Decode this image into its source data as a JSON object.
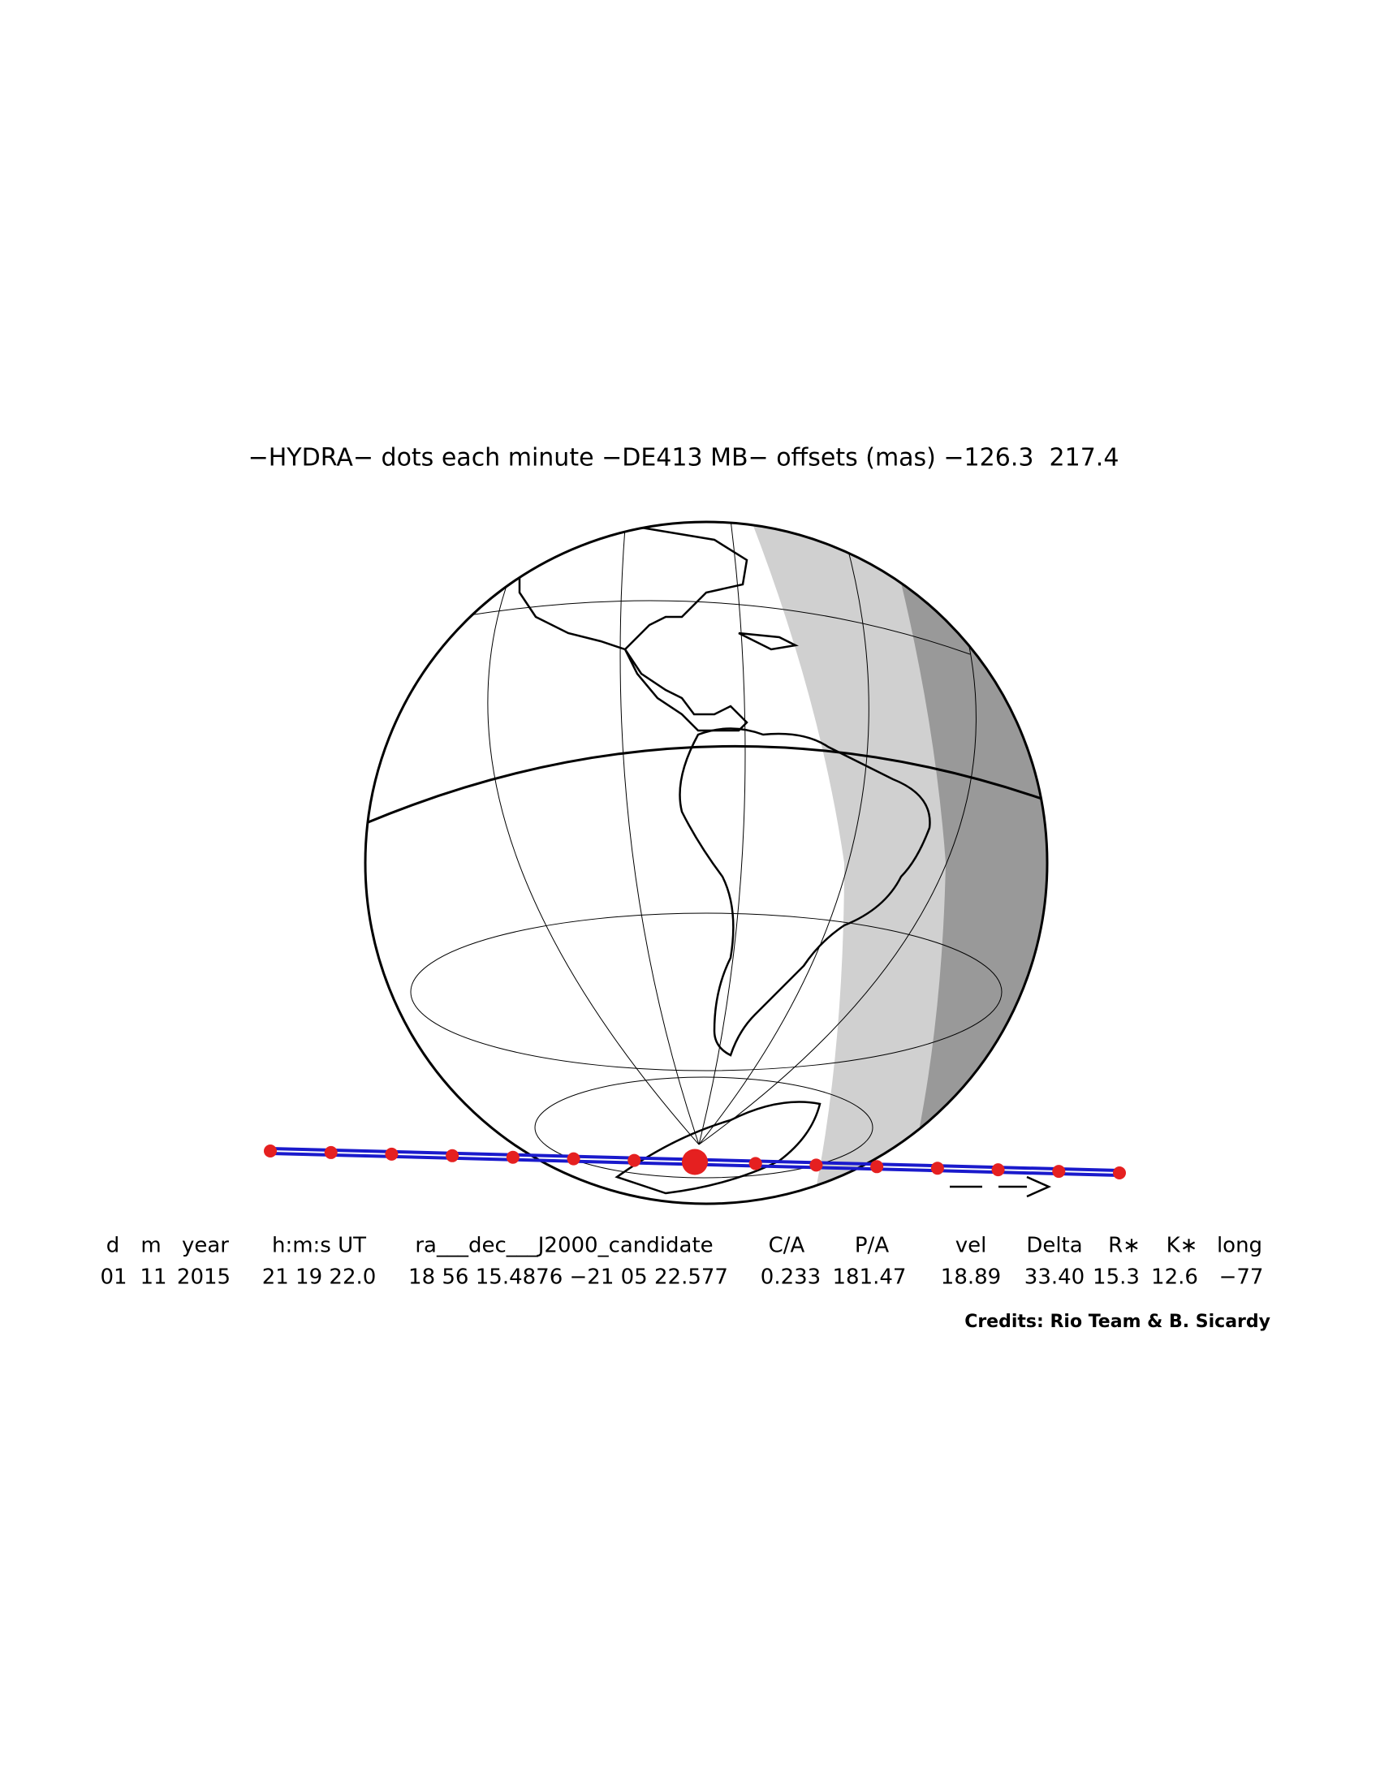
{
  "title": "−HYDRA− dots each minute −DE413 MB− offsets (mas) −126.3  217.4",
  "table": {
    "headers": [
      "d",
      "m",
      "year",
      "h:m:s UT",
      "ra___dec___J2000_candidate",
      "C/A",
      "P/A",
      "vel",
      "Delta",
      "R∗",
      "K∗",
      "long"
    ],
    "values": [
      "01",
      "11",
      "2015",
      "21 19 22.0",
      "18 56 15.4876 −21 05 22.577",
      "0.233",
      "181.47",
      "18.89",
      "33.40",
      "15.3",
      "12.6",
      "−77"
    ]
  },
  "credits": "Credits: Rio Team & B. Sicardy"
}
